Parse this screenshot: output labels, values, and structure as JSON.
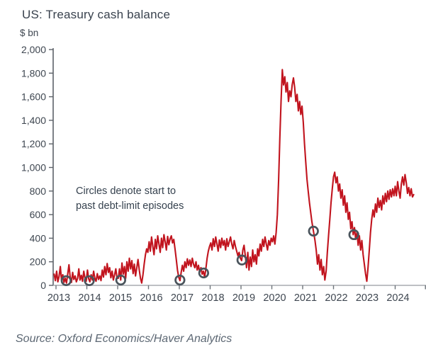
{
  "header": {
    "title": "US: Treasury cash balance",
    "unit_label": "$ bn"
  },
  "annotation": {
    "line1": "Circles denote start to",
    "line2": "past debt-limit episodes"
  },
  "source": "Source: Oxford Economics/Haver Analytics",
  "colors": {
    "line": "#C1141E",
    "circle": "#4A545C",
    "title_text": "#39424E",
    "axis_label_text": "#3E4650",
    "annotation_text": "#36424F",
    "source_text": "#5C6773",
    "y_axis_line": "#5D6269",
    "x_axis_line": "#A8ACB1",
    "x_tick": "#6E747B",
    "background": "#FFFFFF"
  },
  "chart_data": {
    "type": "line",
    "title": "US: Treasury cash balance",
    "ylabel": "$ bn",
    "ylim": [
      0,
      2000
    ],
    "y_tick_step": 200,
    "y_tick_labels": [
      "0",
      "200",
      "400",
      "600",
      "800",
      "1,000",
      "1,200",
      "1,400",
      "1,600",
      "1,800",
      "2,000"
    ],
    "x_tick_labels": [
      "2013",
      "2014",
      "2015",
      "2016",
      "2017",
      "2018",
      "2019",
      "2020",
      "2021",
      "2022",
      "2023",
      "2024"
    ],
    "x_range": [
      2013,
      2025
    ],
    "grid": false,
    "legend": "none",
    "annotation_note": "Circles denote start to past debt-limit episodes",
    "series": [
      {
        "name": "US Treasury cash balance ($ bn)",
        "points": [
          [
            2012.94,
            95
          ],
          [
            2012.98,
            40
          ],
          [
            2013.02,
            120
          ],
          [
            2013.06,
            30
          ],
          [
            2013.1,
            75
          ],
          [
            2013.14,
            160
          ],
          [
            2013.18,
            45
          ],
          [
            2013.22,
            90
          ],
          [
            2013.26,
            25
          ],
          [
            2013.3,
            60
          ],
          [
            2013.34,
            20
          ],
          [
            2013.38,
            95
          ],
          [
            2013.42,
            175
          ],
          [
            2013.46,
            70
          ],
          [
            2013.5,
            25
          ],
          [
            2013.54,
            110
          ],
          [
            2013.58,
            50
          ],
          [
            2013.62,
            80
          ],
          [
            2013.66,
            30
          ],
          [
            2013.7,
            60
          ],
          [
            2013.74,
            140
          ],
          [
            2013.78,
            45
          ],
          [
            2013.82,
            85
          ],
          [
            2013.86,
            35
          ],
          [
            2013.9,
            120
          ],
          [
            2013.94,
            60
          ],
          [
            2013.98,
            35
          ],
          [
            2014.02,
            130
          ],
          [
            2014.06,
            55
          ],
          [
            2014.1,
            30
          ],
          [
            2014.14,
            90
          ],
          [
            2014.18,
            45
          ],
          [
            2014.22,
            120
          ],
          [
            2014.26,
            60
          ],
          [
            2014.3,
            35
          ],
          [
            2014.34,
            100
          ],
          [
            2014.38,
            50
          ],
          [
            2014.42,
            80
          ],
          [
            2014.46,
            40
          ],
          [
            2014.5,
            130
          ],
          [
            2014.54,
            70
          ],
          [
            2014.58,
            160
          ],
          [
            2014.62,
            90
          ],
          [
            2014.66,
            185
          ],
          [
            2014.7,
            110
          ],
          [
            2014.74,
            150
          ],
          [
            2014.78,
            65
          ],
          [
            2014.82,
            120
          ],
          [
            2014.86,
            45
          ],
          [
            2014.9,
            90
          ],
          [
            2014.94,
            140
          ],
          [
            2014.98,
            60
          ],
          [
            2015.02,
            60
          ],
          [
            2015.06,
            140
          ],
          [
            2015.1,
            45
          ],
          [
            2015.14,
            190
          ],
          [
            2015.18,
            95
          ],
          [
            2015.22,
            160
          ],
          [
            2015.26,
            60
          ],
          [
            2015.3,
            200
          ],
          [
            2015.34,
            120
          ],
          [
            2015.38,
            230
          ],
          [
            2015.42,
            140
          ],
          [
            2015.46,
            210
          ],
          [
            2015.5,
            100
          ],
          [
            2015.54,
            180
          ],
          [
            2015.58,
            80
          ],
          [
            2015.62,
            150
          ],
          [
            2015.66,
            220
          ],
          [
            2015.7,
            130
          ],
          [
            2015.74,
            60
          ],
          [
            2015.78,
            20
          ],
          [
            2015.82,
            90
          ],
          [
            2015.86,
            180
          ],
          [
            2015.9,
            260
          ],
          [
            2015.94,
            310
          ],
          [
            2015.98,
            280
          ],
          [
            2016.02,
            370
          ],
          [
            2016.06,
            290
          ],
          [
            2016.1,
            410
          ],
          [
            2016.14,
            330
          ],
          [
            2016.18,
            260
          ],
          [
            2016.22,
            390
          ],
          [
            2016.26,
            310
          ],
          [
            2016.3,
            420
          ],
          [
            2016.34,
            350
          ],
          [
            2016.38,
            280
          ],
          [
            2016.42,
            400
          ],
          [
            2016.46,
            320
          ],
          [
            2016.5,
            430
          ],
          [
            2016.54,
            370
          ],
          [
            2016.58,
            300
          ],
          [
            2016.62,
            415
          ],
          [
            2016.66,
            345
          ],
          [
            2016.7,
            395
          ],
          [
            2016.74,
            420
          ],
          [
            2016.78,
            360
          ],
          [
            2016.82,
            390
          ],
          [
            2016.86,
            310
          ],
          [
            2016.9,
            220
          ],
          [
            2016.94,
            130
          ],
          [
            2016.98,
            70
          ],
          [
            2017.02,
            40
          ],
          [
            2017.06,
            110
          ],
          [
            2017.1,
            170
          ],
          [
            2017.14,
            120
          ],
          [
            2017.18,
            200
          ],
          [
            2017.22,
            150
          ],
          [
            2017.26,
            225
          ],
          [
            2017.3,
            170
          ],
          [
            2017.34,
            215
          ],
          [
            2017.38,
            160
          ],
          [
            2017.42,
            230
          ],
          [
            2017.46,
            180
          ],
          [
            2017.5,
            150
          ],
          [
            2017.54,
            200
          ],
          [
            2017.58,
            130
          ],
          [
            2017.62,
            170
          ],
          [
            2017.66,
            110
          ],
          [
            2017.7,
            150
          ],
          [
            2017.74,
            95
          ],
          [
            2017.78,
            120
          ],
          [
            2017.82,
            70
          ],
          [
            2017.86,
            140
          ],
          [
            2017.9,
            230
          ],
          [
            2017.94,
            290
          ],
          [
            2017.98,
            330
          ],
          [
            2018.02,
            360
          ],
          [
            2018.06,
            300
          ],
          [
            2018.1,
            395
          ],
          [
            2018.14,
            330
          ],
          [
            2018.18,
            410
          ],
          [
            2018.22,
            350
          ],
          [
            2018.26,
            290
          ],
          [
            2018.3,
            385
          ],
          [
            2018.34,
            320
          ],
          [
            2018.38,
            400
          ],
          [
            2018.42,
            340
          ],
          [
            2018.46,
            380
          ],
          [
            2018.5,
            300
          ],
          [
            2018.54,
            395
          ],
          [
            2018.58,
            330
          ],
          [
            2018.62,
            370
          ],
          [
            2018.66,
            410
          ],
          [
            2018.7,
            350
          ],
          [
            2018.74,
            310
          ],
          [
            2018.78,
            380
          ],
          [
            2018.82,
            330
          ],
          [
            2018.86,
            290
          ],
          [
            2018.9,
            250
          ],
          [
            2018.94,
            280
          ],
          [
            2018.98,
            230
          ],
          [
            2019.02,
            210
          ],
          [
            2019.06,
            300
          ],
          [
            2019.1,
            340
          ],
          [
            2019.14,
            250
          ],
          [
            2019.18,
            150
          ],
          [
            2019.22,
            280
          ],
          [
            2019.26,
            130
          ],
          [
            2019.3,
            240
          ],
          [
            2019.34,
            160
          ],
          [
            2019.38,
            300
          ],
          [
            2019.42,
            200
          ],
          [
            2019.46,
            260
          ],
          [
            2019.5,
            180
          ],
          [
            2019.54,
            310
          ],
          [
            2019.58,
            250
          ],
          [
            2019.62,
            350
          ],
          [
            2019.66,
            290
          ],
          [
            2019.7,
            390
          ],
          [
            2019.74,
            330
          ],
          [
            2019.78,
            410
          ],
          [
            2019.82,
            350
          ],
          [
            2019.86,
            300
          ],
          [
            2019.9,
            380
          ],
          [
            2019.94,
            340
          ],
          [
            2019.98,
            400
          ],
          [
            2020.02,
            370
          ],
          [
            2020.06,
            420
          ],
          [
            2020.1,
            350
          ],
          [
            2020.14,
            450
          ],
          [
            2020.18,
            600
          ],
          [
            2020.22,
            900
          ],
          [
            2020.26,
            1250
          ],
          [
            2020.3,
            1560
          ],
          [
            2020.34,
            1830
          ],
          [
            2020.38,
            1700
          ],
          [
            2020.42,
            1770
          ],
          [
            2020.46,
            1640
          ],
          [
            2020.5,
            1720
          ],
          [
            2020.54,
            1560
          ],
          [
            2020.58,
            1650
          ],
          [
            2020.62,
            1600
          ],
          [
            2020.66,
            1700
          ],
          [
            2020.7,
            1760
          ],
          [
            2020.74,
            1680
          ],
          [
            2020.78,
            1560
          ],
          [
            2020.82,
            1620
          ],
          [
            2020.86,
            1480
          ],
          [
            2020.9,
            1560
          ],
          [
            2020.94,
            1450
          ],
          [
            2020.98,
            1520
          ],
          [
            2021.02,
            1380
          ],
          [
            2021.06,
            1200
          ],
          [
            2021.1,
            1050
          ],
          [
            2021.14,
            900
          ],
          [
            2021.18,
            800
          ],
          [
            2021.22,
            700
          ],
          [
            2021.26,
            620
          ],
          [
            2021.3,
            540
          ],
          [
            2021.35,
            460
          ],
          [
            2021.4,
            380
          ],
          [
            2021.44,
            300
          ],
          [
            2021.48,
            180
          ],
          [
            2021.52,
            260
          ],
          [
            2021.56,
            130
          ],
          [
            2021.6,
            220
          ],
          [
            2021.64,
            90
          ],
          [
            2021.68,
            160
          ],
          [
            2021.72,
            45
          ],
          [
            2021.76,
            120
          ],
          [
            2021.8,
            280
          ],
          [
            2021.84,
            420
          ],
          [
            2021.88,
            560
          ],
          [
            2021.92,
            700
          ],
          [
            2021.96,
            820
          ],
          [
            2022.0,
            920
          ],
          [
            2022.04,
            960
          ],
          [
            2022.08,
            870
          ],
          [
            2022.12,
            920
          ],
          [
            2022.16,
            800
          ],
          [
            2022.2,
            860
          ],
          [
            2022.24,
            740
          ],
          [
            2022.28,
            810
          ],
          [
            2022.32,
            680
          ],
          [
            2022.36,
            760
          ],
          [
            2022.4,
            620
          ],
          [
            2022.44,
            700
          ],
          [
            2022.48,
            560
          ],
          [
            2022.52,
            620
          ],
          [
            2022.56,
            480
          ],
          [
            2022.6,
            540
          ],
          [
            2022.64,
            430
          ],
          [
            2022.68,
            490
          ],
          [
            2022.72,
            390
          ],
          [
            2022.76,
            450
          ],
          [
            2022.8,
            340
          ],
          [
            2022.84,
            420
          ],
          [
            2022.88,
            300
          ],
          [
            2022.92,
            380
          ],
          [
            2022.96,
            260
          ],
          [
            2023.0,
            180
          ],
          [
            2023.04,
            100
          ],
          [
            2023.08,
            35
          ],
          [
            2023.12,
            150
          ],
          [
            2023.16,
            300
          ],
          [
            2023.2,
            450
          ],
          [
            2023.24,
            560
          ],
          [
            2023.28,
            640
          ],
          [
            2023.32,
            580
          ],
          [
            2023.36,
            690
          ],
          [
            2023.4,
            620
          ],
          [
            2023.44,
            740
          ],
          [
            2023.48,
            660
          ],
          [
            2023.52,
            720
          ],
          [
            2023.56,
            640
          ],
          [
            2023.6,
            760
          ],
          [
            2023.64,
            690
          ],
          [
            2023.68,
            780
          ],
          [
            2023.72,
            710
          ],
          [
            2023.76,
            800
          ],
          [
            2023.8,
            730
          ],
          [
            2023.84,
            810
          ],
          [
            2023.88,
            750
          ],
          [
            2023.92,
            820
          ],
          [
            2023.96,
            760
          ],
          [
            2024.0,
            840
          ],
          [
            2024.04,
            760
          ],
          [
            2024.08,
            880
          ],
          [
            2024.12,
            800
          ],
          [
            2024.16,
            740
          ],
          [
            2024.2,
            860
          ],
          [
            2024.24,
            920
          ],
          [
            2024.28,
            850
          ],
          [
            2024.32,
            940
          ],
          [
            2024.36,
            870
          ],
          [
            2024.4,
            780
          ],
          [
            2024.44,
            830
          ],
          [
            2024.48,
            760
          ],
          [
            2024.52,
            820
          ],
          [
            2024.56,
            750
          ],
          [
            2024.6,
            770
          ]
        ]
      }
    ],
    "episodes": {
      "marker": "open-circle",
      "points": [
        [
          2013.33,
          40
        ],
        [
          2014.08,
          40
        ],
        [
          2015.1,
          45
        ],
        [
          2017.02,
          45
        ],
        [
          2017.79,
          105
        ],
        [
          2019.03,
          215
        ],
        [
          2021.35,
          460
        ],
        [
          2022.66,
          430
        ]
      ]
    }
  }
}
